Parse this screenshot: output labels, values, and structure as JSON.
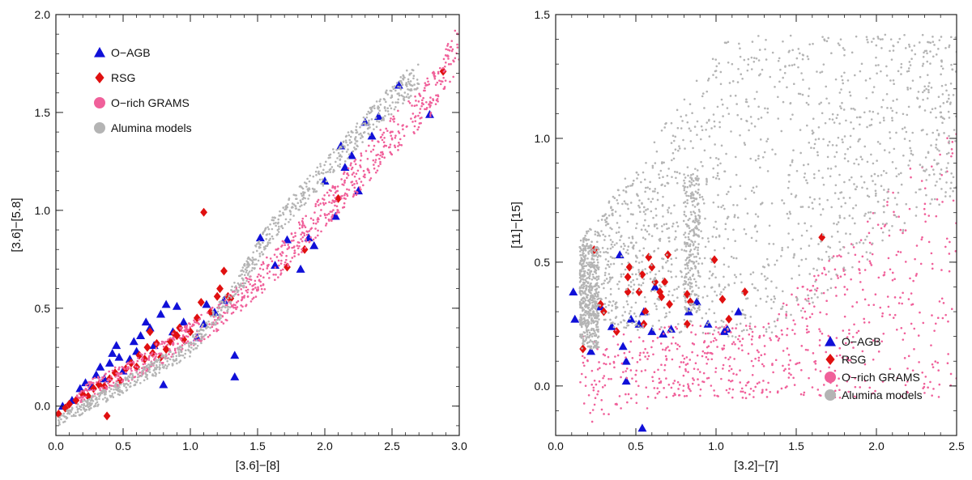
{
  "chart_data": [
    {
      "type": "scatter",
      "xlabel": "[3.6]−[8]",
      "ylabel": "[3.6]−[5.8]",
      "xlim": [
        0.0,
        3.0
      ],
      "ylim": [
        -0.15,
        2.0
      ],
      "xticks": [
        "0.0",
        "0.5",
        "1.0",
        "1.5",
        "2.0",
        "2.5",
        "3.0"
      ],
      "yticks": [
        "0.0",
        "0.5",
        "1.0",
        "1.5",
        "2.0"
      ],
      "legend_position": "top-left",
      "grid": false,
      "series": [
        {
          "name": "O−AGB",
          "marker": "triangle",
          "color": "#1010d8",
          "points": [
            [
              0.05,
              0.0
            ],
            [
              0.12,
              0.03
            ],
            [
              0.18,
              0.09
            ],
            [
              0.22,
              0.12
            ],
            [
              0.27,
              0.1
            ],
            [
              0.3,
              0.16
            ],
            [
              0.33,
              0.2
            ],
            [
              0.36,
              0.14
            ],
            [
              0.4,
              0.22
            ],
            [
              0.42,
              0.27
            ],
            [
              0.45,
              0.31
            ],
            [
              0.47,
              0.25
            ],
            [
              0.5,
              0.18
            ],
            [
              0.55,
              0.24
            ],
            [
              0.58,
              0.33
            ],
            [
              0.6,
              0.28
            ],
            [
              0.63,
              0.36
            ],
            [
              0.67,
              0.43
            ],
            [
              0.7,
              0.4
            ],
            [
              0.73,
              0.31
            ],
            [
              0.78,
              0.47
            ],
            [
              0.82,
              0.52
            ],
            [
              0.8,
              0.11
            ],
            [
              0.87,
              0.38
            ],
            [
              0.9,
              0.51
            ],
            [
              0.95,
              0.43
            ],
            [
              1.05,
              0.35
            ],
            [
              1.1,
              0.42
            ],
            [
              1.12,
              0.52
            ],
            [
              1.18,
              0.48
            ],
            [
              1.25,
              0.54
            ],
            [
              1.33,
              0.26
            ],
            [
              1.33,
              0.15
            ],
            [
              1.52,
              0.86
            ],
            [
              1.63,
              0.72
            ],
            [
              1.72,
              0.85
            ],
            [
              1.82,
              0.7
            ],
            [
              1.88,
              0.86
            ],
            [
              1.92,
              0.82
            ],
            [
              2.0,
              1.15
            ],
            [
              2.08,
              0.97
            ],
            [
              2.12,
              1.33
            ],
            [
              2.15,
              1.22
            ],
            [
              2.2,
              1.28
            ],
            [
              2.25,
              1.1
            ],
            [
              2.3,
              1.45
            ],
            [
              2.35,
              1.38
            ],
            [
              2.4,
              1.48
            ],
            [
              2.55,
              1.64
            ],
            [
              2.78,
              1.49
            ]
          ]
        },
        {
          "name": "RSG",
          "marker": "diamond",
          "color": "#e01010",
          "points": [
            [
              0.02,
              -0.04
            ],
            [
              0.07,
              -0.01
            ],
            [
              0.1,
              0.01
            ],
            [
              0.15,
              0.03
            ],
            [
              0.2,
              0.06
            ],
            [
              0.24,
              0.05
            ],
            [
              0.28,
              0.09
            ],
            [
              0.32,
              0.11
            ],
            [
              0.36,
              0.1
            ],
            [
              0.38,
              -0.05
            ],
            [
              0.4,
              0.14
            ],
            [
              0.44,
              0.17
            ],
            [
              0.48,
              0.13
            ],
            [
              0.52,
              0.19
            ],
            [
              0.56,
              0.22
            ],
            [
              0.6,
              0.2
            ],
            [
              0.62,
              0.26
            ],
            [
              0.66,
              0.24
            ],
            [
              0.68,
              0.3
            ],
            [
              0.7,
              0.38
            ],
            [
              0.72,
              0.27
            ],
            [
              0.75,
              0.32
            ],
            [
              0.78,
              0.25
            ],
            [
              0.82,
              0.29
            ],
            [
              0.85,
              0.33
            ],
            [
              0.88,
              0.37
            ],
            [
              0.9,
              0.36
            ],
            [
              0.92,
              0.4
            ],
            [
              0.95,
              0.34
            ],
            [
              1.0,
              0.38
            ],
            [
              1.05,
              0.45
            ],
            [
              1.08,
              0.53
            ],
            [
              1.1,
              0.99
            ],
            [
              1.15,
              0.48
            ],
            [
              1.2,
              0.56
            ],
            [
              1.22,
              0.6
            ],
            [
              1.25,
              0.69
            ],
            [
              1.28,
              0.56
            ],
            [
              1.3,
              0.55
            ],
            [
              1.72,
              0.71
            ],
            [
              1.85,
              0.8
            ],
            [
              2.1,
              1.06
            ],
            [
              2.88,
              1.71
            ]
          ]
        },
        {
          "name": "O−rich GRAMS",
          "marker": "dot",
          "color": "#f0609a",
          "generator": "band",
          "band": [
            [
              0.15,
              0.05
            ],
            [
              0.6,
              0.2
            ],
            [
              1.2,
              0.45
            ],
            [
              1.6,
              0.7
            ],
            [
              2.0,
              1.0
            ],
            [
              2.4,
              1.3
            ],
            [
              2.8,
              1.6
            ],
            [
              3.0,
              1.85
            ]
          ],
          "spread": 0.14
        },
        {
          "name": "Alumina models",
          "marker": "dot",
          "color": "#b4b4b4",
          "generator": "band",
          "band": [
            [
              0.02,
              -0.07
            ],
            [
              0.5,
              0.1
            ],
            [
              1.0,
              0.3
            ],
            [
              1.3,
              0.55
            ],
            [
              1.6,
              0.9
            ],
            [
              2.0,
              1.2
            ],
            [
              2.4,
              1.5
            ],
            [
              2.7,
              1.7
            ]
          ],
          "spread": 0.1
        }
      ]
    },
    {
      "type": "scatter",
      "xlabel": "[3.2]−[7]",
      "ylabel": "[11]−[15]",
      "xlim": [
        0.0,
        2.5
      ],
      "ylim": [
        -0.2,
        1.5
      ],
      "xticks": [
        "0.0",
        "0.5",
        "1.0",
        "1.5",
        "2.0",
        "2.5"
      ],
      "yticks": [
        "0.0",
        "0.5",
        "1.0",
        "1.5"
      ],
      "legend_position": "bottom-right",
      "grid": false,
      "series": [
        {
          "name": "O−AGB",
          "marker": "triangle",
          "color": "#1010d8",
          "points": [
            [
              0.11,
              0.38
            ],
            [
              0.12,
              0.27
            ],
            [
              0.22,
              0.14
            ],
            [
              0.28,
              0.32
            ],
            [
              0.35,
              0.24
            ],
            [
              0.4,
              0.53
            ],
            [
              0.42,
              0.16
            ],
            [
              0.44,
              0.1
            ],
            [
              0.44,
              0.02
            ],
            [
              0.47,
              0.27
            ],
            [
              0.52,
              0.25
            ],
            [
              0.54,
              -0.17
            ],
            [
              0.55,
              0.3
            ],
            [
              0.6,
              0.22
            ],
            [
              0.62,
              0.4
            ],
            [
              0.67,
              0.21
            ],
            [
              0.72,
              0.23
            ],
            [
              0.83,
              0.3
            ],
            [
              0.88,
              0.34
            ],
            [
              0.95,
              0.25
            ],
            [
              1.05,
              0.22
            ],
            [
              1.07,
              0.23
            ],
            [
              1.14,
              0.3
            ]
          ]
        },
        {
          "name": "RSG",
          "marker": "diamond",
          "color": "#e01010",
          "points": [
            [
              0.17,
              0.15
            ],
            [
              0.24,
              0.55
            ],
            [
              0.28,
              0.33
            ],
            [
              0.3,
              0.3
            ],
            [
              0.38,
              0.22
            ],
            [
              0.45,
              0.44
            ],
            [
              0.45,
              0.38
            ],
            [
              0.46,
              0.48
            ],
            [
              0.52,
              0.38
            ],
            [
              0.54,
              0.45
            ],
            [
              0.55,
              0.25
            ],
            [
              0.56,
              0.3
            ],
            [
              0.58,
              0.52
            ],
            [
              0.6,
              0.48
            ],
            [
              0.62,
              0.42
            ],
            [
              0.65,
              0.38
            ],
            [
              0.66,
              0.36
            ],
            [
              0.68,
              0.42
            ],
            [
              0.7,
              0.53
            ],
            [
              0.71,
              0.33
            ],
            [
              0.82,
              0.25
            ],
            [
              0.82,
              0.37
            ],
            [
              0.84,
              0.34
            ],
            [
              0.99,
              0.51
            ],
            [
              1.04,
              0.35
            ],
            [
              1.08,
              0.27
            ],
            [
              1.18,
              0.38
            ],
            [
              1.66,
              0.6
            ]
          ]
        },
        {
          "name": "O−rich GRAMS",
          "marker": "dot",
          "color": "#f0609a",
          "generator": "fan-low"
        },
        {
          "name": "Alumina models",
          "marker": "dot",
          "color": "#b4b4b4",
          "generator": "fan-high"
        }
      ]
    }
  ]
}
